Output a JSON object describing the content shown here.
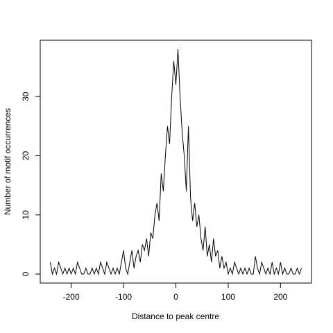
{
  "chart_data": {
    "type": "line",
    "xlabel": "Distance to peak centre",
    "ylabel": "Number of motif occurrences",
    "x": [
      -240,
      -236,
      -232,
      -228,
      -224,
      -220,
      -216,
      -212,
      -208,
      -204,
      -200,
      -196,
      -192,
      -188,
      -184,
      -180,
      -176,
      -172,
      -168,
      -164,
      -160,
      -156,
      -152,
      -148,
      -144,
      -140,
      -136,
      -132,
      -128,
      -124,
      -120,
      -116,
      -112,
      -108,
      -104,
      -100,
      -96,
      -92,
      -88,
      -84,
      -80,
      -76,
      -72,
      -68,
      -64,
      -60,
      -56,
      -52,
      -48,
      -44,
      -40,
      -36,
      -32,
      -28,
      -24,
      -20,
      -16,
      -12,
      -8,
      -4,
      0,
      4,
      8,
      12,
      16,
      20,
      24,
      28,
      32,
      36,
      40,
      44,
      48,
      52,
      56,
      60,
      64,
      68,
      72,
      76,
      80,
      84,
      88,
      92,
      96,
      100,
      104,
      108,
      112,
      116,
      120,
      124,
      128,
      132,
      136,
      140,
      144,
      148,
      152,
      156,
      160,
      164,
      168,
      172,
      176,
      180,
      184,
      188,
      192,
      196,
      200,
      204,
      208,
      212,
      216,
      220,
      224,
      228,
      232,
      236,
      240
    ],
    "series": [
      {
        "color": "#000000",
        "values": [
          2,
          0,
          1,
          0,
          2,
          1,
          0,
          1,
          0,
          1,
          0,
          1,
          0,
          2,
          1,
          0,
          0,
          1,
          0,
          0,
          1,
          0,
          1,
          0,
          2,
          1,
          0,
          2,
          1,
          0,
          1,
          0,
          1,
          0,
          2,
          4,
          1,
          0,
          2,
          4,
          1,
          3,
          4,
          2,
          5,
          4,
          6,
          3,
          7,
          6,
          10,
          12,
          9,
          17,
          14,
          20,
          25,
          22,
          30,
          36,
          32,
          38,
          30,
          24,
          20,
          14,
          25,
          13,
          9,
          12,
          8,
          10,
          6,
          4,
          8,
          3,
          5,
          2,
          6,
          3,
          4,
          1,
          3,
          1,
          2,
          0,
          1,
          0,
          2,
          1,
          0,
          1,
          0,
          1,
          0,
          1,
          0,
          0,
          3,
          1,
          0,
          2,
          1,
          0,
          1,
          0,
          2,
          0,
          1,
          0,
          2,
          0,
          1,
          0,
          0,
          1,
          0,
          0,
          1,
          0,
          1
        ]
      }
    ],
    "xlim": [
      -259.2,
      259.2
    ],
    "xticks": [
      -200,
      -100,
      0,
      100,
      200
    ],
    "ylim": [
      -1.52,
      39.52
    ],
    "yticks": [
      0,
      10,
      20,
      30
    ]
  }
}
